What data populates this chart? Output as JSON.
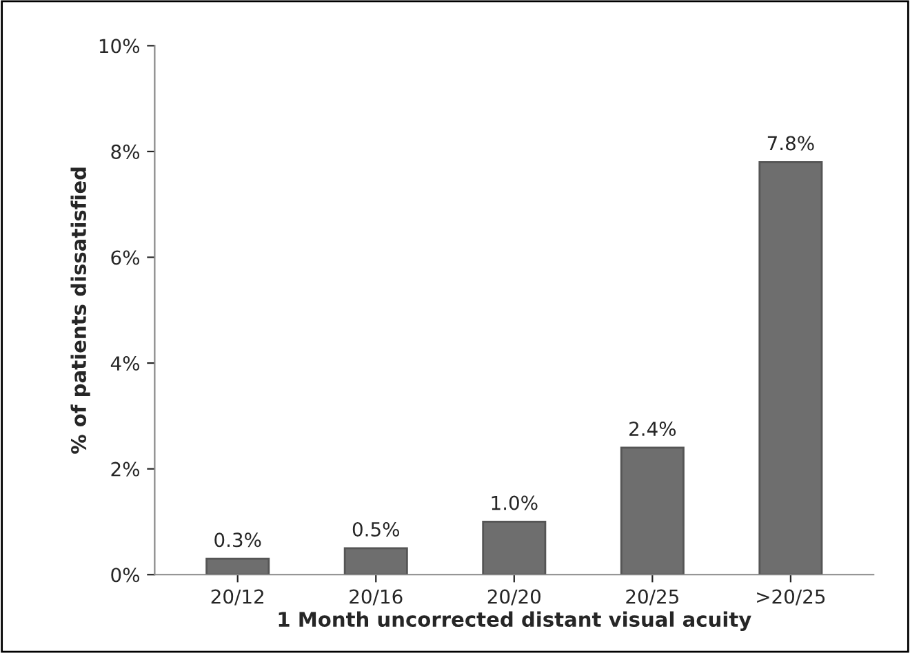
{
  "chart_data": {
    "type": "bar",
    "xlabel": "1 Month uncorrected distant visual acuity",
    "ylabel": "% of patients dissatisfied",
    "categories": [
      "20/12",
      "20/16",
      "20/20",
      "20/25",
      ">20/25"
    ],
    "values": [
      0.3,
      0.5,
      1.0,
      2.4,
      7.8
    ],
    "value_labels": [
      "0.3%",
      "0.5%",
      "1.0%",
      "2.4%",
      "7.8%"
    ],
    "color": "#6e6e6e",
    "ylim": [
      0,
      10
    ],
    "yticks": [
      {
        "value": 0,
        "label": "0%"
      },
      {
        "value": 2,
        "label": "2%"
      },
      {
        "value": 4,
        "label": "4%"
      },
      {
        "value": 6,
        "label": "6%"
      },
      {
        "value": 8,
        "label": "8%"
      },
      {
        "value": 10,
        "label": "10%"
      }
    ],
    "grid": false,
    "legend": false
  }
}
